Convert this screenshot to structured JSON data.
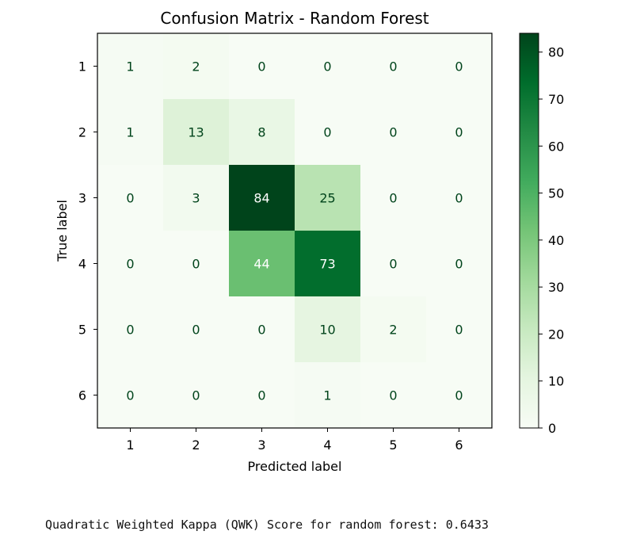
{
  "chart_data": {
    "type": "heatmap",
    "title": "Confusion Matrix - Random Forest",
    "xlabel": "Predicted label",
    "ylabel": "True label",
    "x_categories": [
      "1",
      "2",
      "3",
      "4",
      "5",
      "6"
    ],
    "y_categories": [
      "1",
      "2",
      "3",
      "4",
      "5",
      "6"
    ],
    "values": [
      [
        1,
        2,
        0,
        0,
        0,
        0
      ],
      [
        1,
        13,
        8,
        0,
        0,
        0
      ],
      [
        0,
        3,
        84,
        25,
        0,
        0
      ],
      [
        0,
        0,
        44,
        73,
        0,
        0
      ],
      [
        0,
        0,
        0,
        10,
        2,
        0
      ],
      [
        0,
        0,
        0,
        1,
        0,
        0
      ]
    ],
    "colormap": "Greens",
    "colorbar": {
      "min": 0,
      "max": 84,
      "ticks": [
        0,
        10,
        20,
        30,
        40,
        50,
        60,
        70,
        80
      ]
    },
    "grid": false
  },
  "footer": {
    "qwk_text": "Quadratic Weighted Kappa (QWK) Score for random forest: 0.6433"
  }
}
